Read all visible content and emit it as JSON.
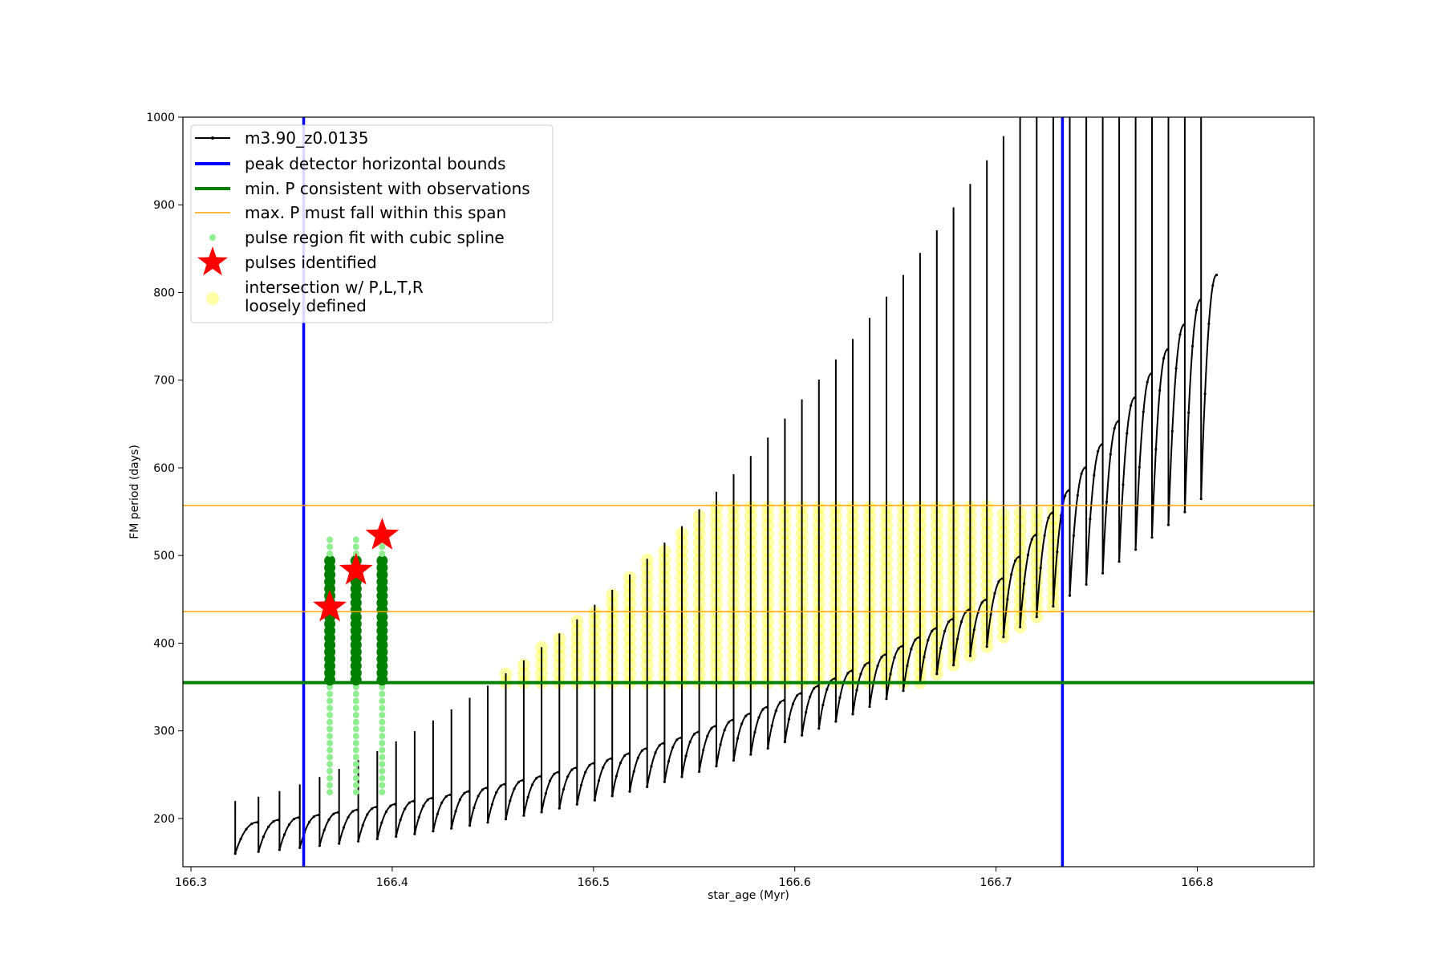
{
  "chart_data": {
    "type": "line",
    "xlabel": "star_age (Myr)",
    "ylabel": "FM period (days)",
    "xlim": [
      166.296,
      166.858
    ],
    "ylim": [
      145,
      1000
    ],
    "xticks": [
      166.3,
      166.4,
      166.5,
      166.6,
      166.7,
      166.8
    ],
    "xtick_labels": [
      "166.3",
      "166.4",
      "166.5",
      "166.6",
      "166.7",
      "166.8"
    ],
    "yticks": [
      200,
      300,
      400,
      500,
      600,
      700,
      800,
      900,
      1000
    ],
    "ytick_labels": [
      "200",
      "300",
      "400",
      "500",
      "600",
      "700",
      "800",
      "900",
      "1000"
    ],
    "legend_position": "upper-left",
    "legend": [
      {
        "key": "track",
        "label": "m3.90_z0.0135"
      },
      {
        "key": "bounds",
        "label": "peak detector horizontal bounds"
      },
      {
        "key": "minp",
        "label": "min. P consistent with observations"
      },
      {
        "key": "maxp",
        "label": "max. P must fall within this span"
      },
      {
        "key": "spline",
        "label": "pulse region fit with cubic spline"
      },
      {
        "key": "pulses",
        "label": "pulses identified"
      },
      {
        "key": "loose",
        "label": "intersection w/ P,L,T,R\nloosely defined"
      }
    ],
    "vertical_bounds": [
      166.356,
      166.733
    ],
    "min_period": 355,
    "max_period_span": [
      436,
      557
    ],
    "pulses": [
      {
        "x": 166.369,
        "y": 441
      },
      {
        "x": 166.382,
        "y": 483
      },
      {
        "x": 166.395,
        "y": 523
      }
    ],
    "track": {
      "name": "m3.90_z0.0135",
      "start_age": 166.322,
      "end_age": 166.81,
      "cycle_count": 57,
      "min_period_start": 160,
      "max_period_end": 1000,
      "peak_period_end": 990
    },
    "colors": {
      "track": "#000000",
      "bounds": "#0000ff",
      "minp": "#007f00",
      "maxp": "#ffa500",
      "spline": "#90ee90",
      "pulses": "#ff0000",
      "loose": "#ffff00"
    }
  }
}
